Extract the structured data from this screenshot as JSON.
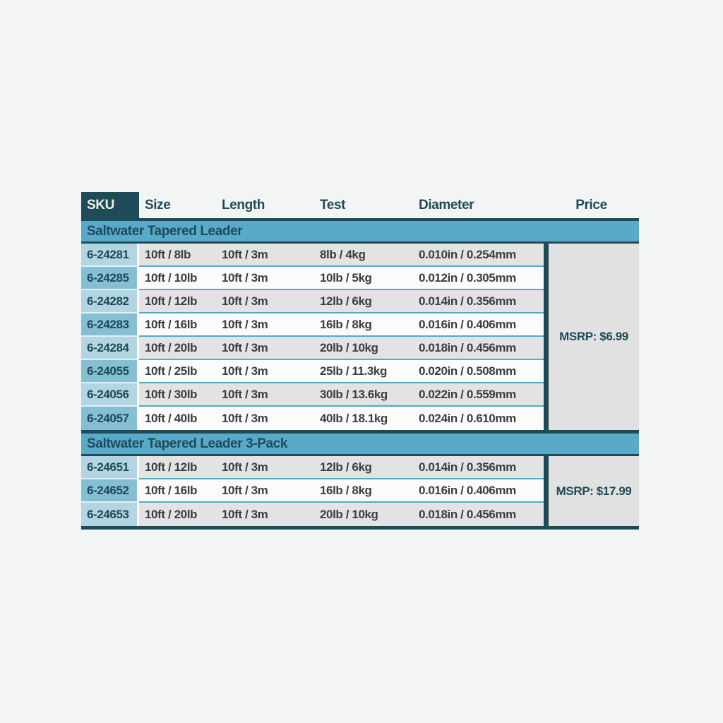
{
  "page": {
    "background": "#f3f4f4"
  },
  "colors": {
    "dark_teal": "#1e4b58",
    "band_blue": "#59aac8",
    "sku_light_blue": "#b3d5e2",
    "sku_medium_blue": "#85bfd3",
    "row_gray": "#e3e3e3",
    "row_white": "#fbfbfb",
    "price_gray": "#e1e1e1",
    "row_separator_blue": "#55a8c6",
    "sku_header_text": "#f3eee4",
    "data_text": "#3b3e41"
  },
  "table": {
    "headers": {
      "sku": "SKU",
      "size": "Size",
      "length": "Length",
      "test": "Test",
      "diameter": "Diameter",
      "price": "Price"
    },
    "sections": [
      {
        "title": "Saltwater Tapered Leader",
        "msrp": "MSRP: $6.99",
        "rows": [
          {
            "sku": "6-24281",
            "size": "10ft / 8lb",
            "length": "10ft / 3m",
            "test": "8lb / 4kg",
            "diameter": "0.010in / 0.254mm"
          },
          {
            "sku": "6-24285",
            "size": "10ft / 10lb",
            "length": "10ft / 3m",
            "test": "10lb / 5kg",
            "diameter": "0.012in / 0.305mm"
          },
          {
            "sku": "6-24282",
            "size": "10ft / 12lb",
            "length": "10ft / 3m",
            "test": "12lb / 6kg",
            "diameter": "0.014in / 0.356mm"
          },
          {
            "sku": "6-24283",
            "size": "10ft / 16lb",
            "length": "10ft / 3m",
            "test": "16lb / 8kg",
            "diameter": "0.016in / 0.406mm"
          },
          {
            "sku": "6-24284",
            "size": "10ft / 20lb",
            "length": "10ft / 3m",
            "test": "20lb / 10kg",
            "diameter": "0.018in / 0.456mm"
          },
          {
            "sku": "6-24055",
            "size": "10ft / 25lb",
            "length": "10ft / 3m",
            "test": "25lb / 11.3kg",
            "diameter": "0.020in / 0.508mm"
          },
          {
            "sku": "6-24056",
            "size": "10ft / 30lb",
            "length": "10ft / 3m",
            "test": "30lb / 13.6kg",
            "diameter": "0.022in / 0.559mm"
          },
          {
            "sku": "6-24057",
            "size": "10ft / 40lb",
            "length": "10ft / 3m",
            "test": "40lb / 18.1kg",
            "diameter": "0.024in / 0.610mm"
          }
        ]
      },
      {
        "title": "Saltwater Tapered Leader 3-Pack",
        "msrp": "MSRP: $17.99",
        "rows": [
          {
            "sku": "6-24651",
            "size": "10ft / 12lb",
            "length": "10ft / 3m",
            "test": "12lb / 6kg",
            "diameter": "0.014in / 0.356mm"
          },
          {
            "sku": "6-24652",
            "size": "10ft / 16lb",
            "length": "10ft / 3m",
            "test": "16lb / 8kg",
            "diameter": "0.016in / 0.406mm"
          },
          {
            "sku": "6-24653",
            "size": "10ft / 20lb",
            "length": "10ft / 3m",
            "test": "20lb / 10kg",
            "diameter": "0.018in / 0.456mm"
          }
        ]
      }
    ]
  }
}
